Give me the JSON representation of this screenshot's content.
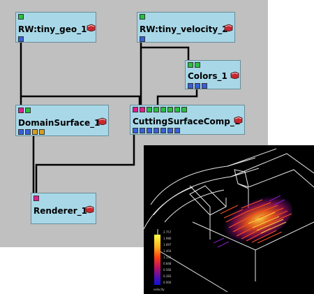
{
  "modules": [
    {
      "id": "rw_geo",
      "title": "RW:tiny_geo_1",
      "in_ports": [
        "green"
      ],
      "out_ports": [
        "blue"
      ]
    },
    {
      "id": "rw_velocity",
      "title": "RW:tiny_velocity_2",
      "in_ports": [
        "green"
      ],
      "out_ports": [
        "blue"
      ]
    },
    {
      "id": "colors",
      "title": "Colors_1",
      "in_ports": [
        "green",
        "green"
      ],
      "out_ports": [
        "blue",
        "blue",
        "blue"
      ]
    },
    {
      "id": "domain_surface",
      "title": "DomainSurface_1",
      "in_ports": [
        "pink",
        "green"
      ],
      "out_ports": [
        "blue",
        "blue",
        "orange",
        "orange"
      ]
    },
    {
      "id": "cutting_surface",
      "title": "CuttingSurfaceComp_1",
      "in_ports": [
        "pink",
        "pink",
        "green",
        "green",
        "green",
        "green",
        "green",
        "green"
      ],
      "out_ports": [
        "blue",
        "blue",
        "blue",
        "blue",
        "blue",
        "blue",
        "blue"
      ]
    },
    {
      "id": "renderer",
      "title": "Renderer_1",
      "in_ports": [
        "pink"
      ],
      "out_ports": []
    }
  ],
  "viewer": {
    "colorbar_labels": [
      "2.757",
      "1.980",
      "1.697",
      "1.404",
      "1.131",
      "0.848",
      "0.566",
      "0.283",
      "0.000"
    ],
    "colorbar_title": "velocity",
    "colorbar_colors": [
      "#ffff40",
      "#ffd020",
      "#ff9010",
      "#ff4010",
      "#e01030",
      "#b01070",
      "#7010a0",
      "#3010c0",
      "#1010e0"
    ]
  }
}
